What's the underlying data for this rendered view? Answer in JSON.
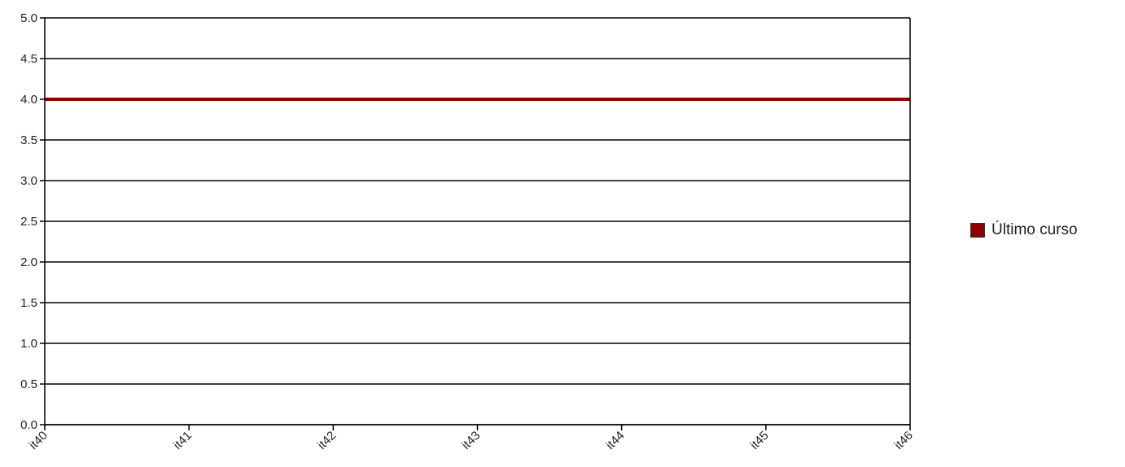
{
  "chart_data": {
    "type": "line",
    "categories": [
      "it40",
      "it41",
      "it42",
      "it43",
      "it44",
      "it45",
      "it46"
    ],
    "series": [
      {
        "name": "Último curso",
        "values": [
          4.0,
          4.0,
          4.0,
          4.0,
          4.0,
          4.0,
          4.0
        ],
        "color": "#8b0000"
      }
    ],
    "ylim": [
      0,
      5
    ],
    "yticks": [
      "0.0",
      "0.5",
      "1.0",
      "1.5",
      "2.0",
      "2.5",
      "3.0",
      "3.5",
      "4.0",
      "4.5",
      "5.0"
    ],
    "grid": true,
    "legend_position": "right"
  }
}
